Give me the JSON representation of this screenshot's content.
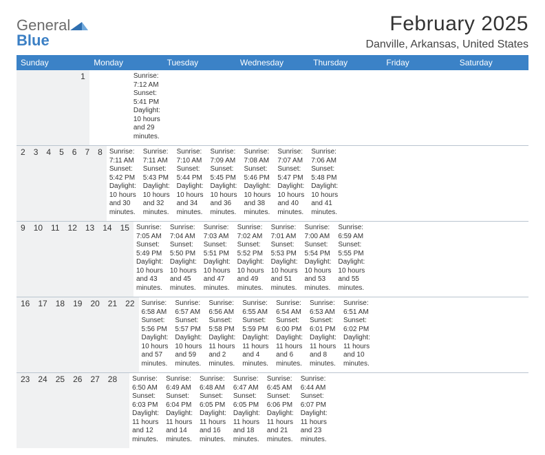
{
  "logo": {
    "general": "General",
    "blue": "Blue"
  },
  "header": {
    "month_title": "February 2025",
    "location": "Danville, Arkansas, United States"
  },
  "colors": {
    "header_bar": "#3b82c7",
    "header_text": "#ffffff",
    "daynum_bg": "#f0f1f2",
    "divider": "#b9c4cf",
    "body_text": "#333333",
    "logo_gray": "#6b6b6b",
    "logo_blue": "#3b7fc4",
    "background": "#ffffff"
  },
  "typography": {
    "title_fontsize": 30,
    "location_fontsize": 16,
    "dayhead_fontsize": 12,
    "cell_fontsize": 10
  },
  "calendar": {
    "type": "table",
    "day_headers": [
      "Sunday",
      "Monday",
      "Tuesday",
      "Wednesday",
      "Thursday",
      "Friday",
      "Saturday"
    ],
    "weeks": [
      [
        {
          "num": "",
          "sunrise": "",
          "sunset": "",
          "daylight": ""
        },
        {
          "num": "",
          "sunrise": "",
          "sunset": "",
          "daylight": ""
        },
        {
          "num": "",
          "sunrise": "",
          "sunset": "",
          "daylight": ""
        },
        {
          "num": "",
          "sunrise": "",
          "sunset": "",
          "daylight": ""
        },
        {
          "num": "",
          "sunrise": "",
          "sunset": "",
          "daylight": ""
        },
        {
          "num": "",
          "sunrise": "",
          "sunset": "",
          "daylight": ""
        },
        {
          "num": "1",
          "sunrise": "Sunrise: 7:12 AM",
          "sunset": "Sunset: 5:41 PM",
          "daylight": "Daylight: 10 hours and 29 minutes."
        }
      ],
      [
        {
          "num": "2",
          "sunrise": "Sunrise: 7:11 AM",
          "sunset": "Sunset: 5:42 PM",
          "daylight": "Daylight: 10 hours and 30 minutes."
        },
        {
          "num": "3",
          "sunrise": "Sunrise: 7:11 AM",
          "sunset": "Sunset: 5:43 PM",
          "daylight": "Daylight: 10 hours and 32 minutes."
        },
        {
          "num": "4",
          "sunrise": "Sunrise: 7:10 AM",
          "sunset": "Sunset: 5:44 PM",
          "daylight": "Daylight: 10 hours and 34 minutes."
        },
        {
          "num": "5",
          "sunrise": "Sunrise: 7:09 AM",
          "sunset": "Sunset: 5:45 PM",
          "daylight": "Daylight: 10 hours and 36 minutes."
        },
        {
          "num": "6",
          "sunrise": "Sunrise: 7:08 AM",
          "sunset": "Sunset: 5:46 PM",
          "daylight": "Daylight: 10 hours and 38 minutes."
        },
        {
          "num": "7",
          "sunrise": "Sunrise: 7:07 AM",
          "sunset": "Sunset: 5:47 PM",
          "daylight": "Daylight: 10 hours and 40 minutes."
        },
        {
          "num": "8",
          "sunrise": "Sunrise: 7:06 AM",
          "sunset": "Sunset: 5:48 PM",
          "daylight": "Daylight: 10 hours and 41 minutes."
        }
      ],
      [
        {
          "num": "9",
          "sunrise": "Sunrise: 7:05 AM",
          "sunset": "Sunset: 5:49 PM",
          "daylight": "Daylight: 10 hours and 43 minutes."
        },
        {
          "num": "10",
          "sunrise": "Sunrise: 7:04 AM",
          "sunset": "Sunset: 5:50 PM",
          "daylight": "Daylight: 10 hours and 45 minutes."
        },
        {
          "num": "11",
          "sunrise": "Sunrise: 7:03 AM",
          "sunset": "Sunset: 5:51 PM",
          "daylight": "Daylight: 10 hours and 47 minutes."
        },
        {
          "num": "12",
          "sunrise": "Sunrise: 7:02 AM",
          "sunset": "Sunset: 5:52 PM",
          "daylight": "Daylight: 10 hours and 49 minutes."
        },
        {
          "num": "13",
          "sunrise": "Sunrise: 7:01 AM",
          "sunset": "Sunset: 5:53 PM",
          "daylight": "Daylight: 10 hours and 51 minutes."
        },
        {
          "num": "14",
          "sunrise": "Sunrise: 7:00 AM",
          "sunset": "Sunset: 5:54 PM",
          "daylight": "Daylight: 10 hours and 53 minutes."
        },
        {
          "num": "15",
          "sunrise": "Sunrise: 6:59 AM",
          "sunset": "Sunset: 5:55 PM",
          "daylight": "Daylight: 10 hours and 55 minutes."
        }
      ],
      [
        {
          "num": "16",
          "sunrise": "Sunrise: 6:58 AM",
          "sunset": "Sunset: 5:56 PM",
          "daylight": "Daylight: 10 hours and 57 minutes."
        },
        {
          "num": "17",
          "sunrise": "Sunrise: 6:57 AM",
          "sunset": "Sunset: 5:57 PM",
          "daylight": "Daylight: 10 hours and 59 minutes."
        },
        {
          "num": "18",
          "sunrise": "Sunrise: 6:56 AM",
          "sunset": "Sunset: 5:58 PM",
          "daylight": "Daylight: 11 hours and 2 minutes."
        },
        {
          "num": "19",
          "sunrise": "Sunrise: 6:55 AM",
          "sunset": "Sunset: 5:59 PM",
          "daylight": "Daylight: 11 hours and 4 minutes."
        },
        {
          "num": "20",
          "sunrise": "Sunrise: 6:54 AM",
          "sunset": "Sunset: 6:00 PM",
          "daylight": "Daylight: 11 hours and 6 minutes."
        },
        {
          "num": "21",
          "sunrise": "Sunrise: 6:53 AM",
          "sunset": "Sunset: 6:01 PM",
          "daylight": "Daylight: 11 hours and 8 minutes."
        },
        {
          "num": "22",
          "sunrise": "Sunrise: 6:51 AM",
          "sunset": "Sunset: 6:02 PM",
          "daylight": "Daylight: 11 hours and 10 minutes."
        }
      ],
      [
        {
          "num": "23",
          "sunrise": "Sunrise: 6:50 AM",
          "sunset": "Sunset: 6:03 PM",
          "daylight": "Daylight: 11 hours and 12 minutes."
        },
        {
          "num": "24",
          "sunrise": "Sunrise: 6:49 AM",
          "sunset": "Sunset: 6:04 PM",
          "daylight": "Daylight: 11 hours and 14 minutes."
        },
        {
          "num": "25",
          "sunrise": "Sunrise: 6:48 AM",
          "sunset": "Sunset: 6:05 PM",
          "daylight": "Daylight: 11 hours and 16 minutes."
        },
        {
          "num": "26",
          "sunrise": "Sunrise: 6:47 AM",
          "sunset": "Sunset: 6:05 PM",
          "daylight": "Daylight: 11 hours and 18 minutes."
        },
        {
          "num": "27",
          "sunrise": "Sunrise: 6:45 AM",
          "sunset": "Sunset: 6:06 PM",
          "daylight": "Daylight: 11 hours and 21 minutes."
        },
        {
          "num": "28",
          "sunrise": "Sunrise: 6:44 AM",
          "sunset": "Sunset: 6:07 PM",
          "daylight": "Daylight: 11 hours and 23 minutes."
        },
        {
          "num": "",
          "sunrise": "",
          "sunset": "",
          "daylight": ""
        }
      ]
    ]
  }
}
